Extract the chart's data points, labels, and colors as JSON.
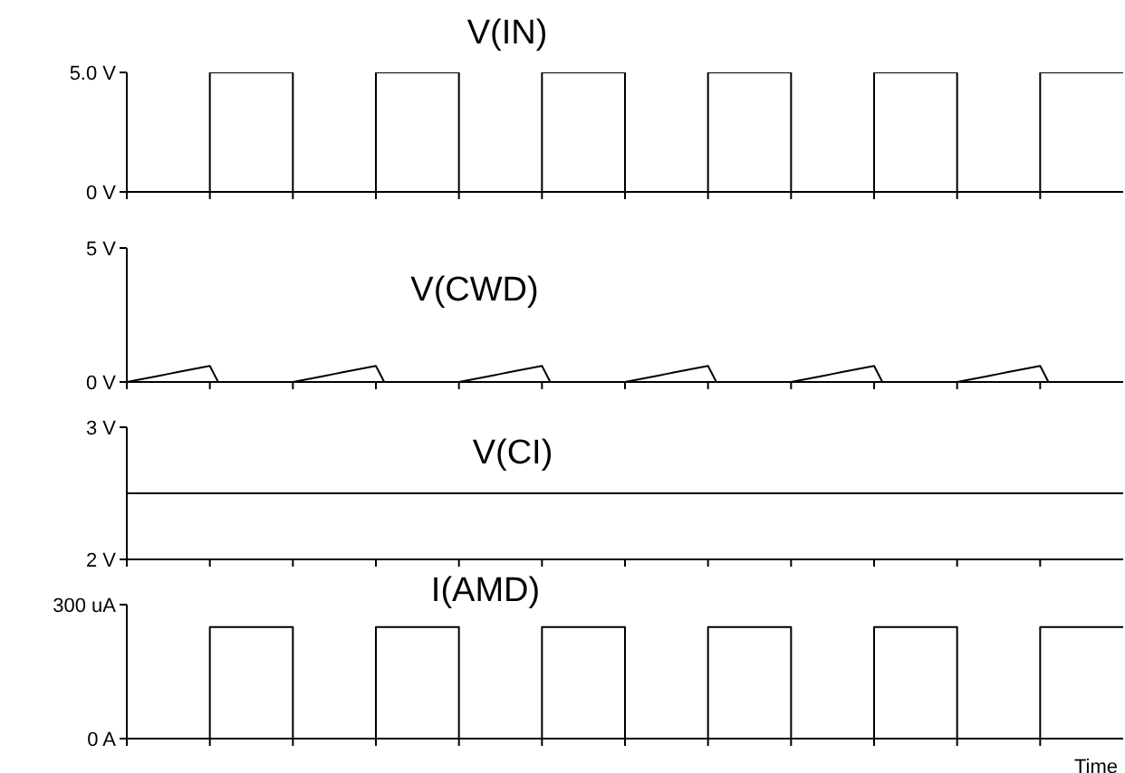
{
  "chart_data": [
    {
      "type": "step",
      "title": "V(IN)",
      "categories": [
        null,
        null,
        null,
        null,
        null,
        null,
        null,
        null,
        null,
        null,
        null,
        null,
        null
      ],
      "series": [
        {
          "color": "#000000",
          "values": [
            0,
            5,
            0,
            5,
            0,
            5,
            0,
            5,
            0,
            5,
            0,
            5,
            5
          ]
        }
      ],
      "ylim": [
        0,
        5
      ],
      "yticks": [
        {
          "value": 0,
          "label": "0 V"
        },
        {
          "value": 5,
          "label": "5.0 V"
        }
      ],
      "tick_labels": "y",
      "grid": false,
      "legend": false
    },
    {
      "type": "line",
      "title": "V(CWD)",
      "categories": [
        null,
        null,
        null,
        null,
        null,
        null,
        null,
        null,
        null,
        null,
        null,
        null,
        null,
        null,
        null,
        null,
        null,
        null,
        null,
        null,
        null,
        null,
        null,
        null,
        null,
        null,
        null,
        null,
        null,
        null,
        null,
        null,
        null,
        null,
        null,
        null,
        null,
        null,
        null,
        null,
        null,
        null,
        null,
        null,
        null,
        null,
        null,
        null,
        null,
        null,
        null,
        null,
        null,
        null,
        null,
        null,
        null,
        null,
        null,
        null,
        null,
        null,
        null,
        null,
        null,
        null,
        null,
        null,
        null,
        null,
        null,
        null,
        null,
        null,
        null,
        null,
        null,
        null,
        null,
        null,
        null,
        null,
        null,
        null,
        null,
        null,
        null,
        null,
        null,
        null,
        null,
        null,
        null,
        null,
        null,
        null,
        null,
        null,
        null,
        null,
        null,
        null,
        null,
        null,
        null,
        null,
        null,
        null,
        null,
        null,
        null,
        null,
        null,
        null,
        null,
        null,
        null,
        null,
        null,
        null,
        null
      ],
      "series": [
        {
          "color": "#000000",
          "values": [
            0,
            0.06,
            0.12,
            0.18,
            0.24,
            0.3,
            0.36,
            0.42,
            0.48,
            0.54,
            0.6,
            0,
            0,
            0,
            0,
            0,
            0,
            0,
            0,
            0,
            0,
            0.06,
            0.12,
            0.18,
            0.24,
            0.3,
            0.36,
            0.42,
            0.48,
            0.54,
            0.6,
            0,
            0,
            0,
            0,
            0,
            0,
            0,
            0,
            0,
            0,
            0.06,
            0.12,
            0.18,
            0.24,
            0.3,
            0.36,
            0.42,
            0.48,
            0.54,
            0.6,
            0,
            0,
            0,
            0,
            0,
            0,
            0,
            0,
            0,
            0,
            0.06,
            0.12,
            0.18,
            0.24,
            0.3,
            0.36,
            0.42,
            0.48,
            0.54,
            0.6,
            0,
            0,
            0,
            0,
            0,
            0,
            0,
            0,
            0,
            0,
            0.06,
            0.12,
            0.18,
            0.24,
            0.3,
            0.36,
            0.42,
            0.48,
            0.54,
            0.6,
            0,
            0,
            0,
            0,
            0,
            0,
            0,
            0,
            0,
            0,
            0.06,
            0.12,
            0.18,
            0.24,
            0.3,
            0.36,
            0.42,
            0.48,
            0.54,
            0.6,
            0,
            0,
            0,
            0,
            0,
            0,
            0,
            0,
            0,
            0
          ]
        }
      ],
      "ylim": [
        0,
        5
      ],
      "yticks": [
        {
          "value": 0,
          "label": "0 V"
        },
        {
          "value": 5,
          "label": "5 V"
        }
      ],
      "tick_labels": "y",
      "grid": false,
      "legend": false
    },
    {
      "type": "line",
      "title": "V(CI)",
      "categories": [
        null,
        null,
        null,
        null,
        null,
        null,
        null,
        null,
        null,
        null,
        null,
        null,
        null
      ],
      "series": [
        {
          "color": "#000000",
          "values": [
            2.5,
            2.5,
            2.5,
            2.5,
            2.5,
            2.5,
            2.5,
            2.5,
            2.5,
            2.5,
            2.5,
            2.5,
            2.5
          ]
        }
      ],
      "ylim": [
        2,
        3
      ],
      "yticks": [
        {
          "value": 2,
          "label": "2 V"
        },
        {
          "value": 3,
          "label": "3 V"
        }
      ],
      "tick_labels": "y",
      "grid": false,
      "legend": false
    },
    {
      "type": "step",
      "title": "I(AMD)",
      "xlabel": "Time",
      "categories": [
        null,
        null,
        null,
        null,
        null,
        null,
        null,
        null,
        null,
        null,
        null,
        null,
        null
      ],
      "series": [
        {
          "color": "#000000",
          "values": [
            0,
            250,
            0,
            250,
            0,
            250,
            0,
            250,
            0,
            250,
            0,
            250,
            250
          ]
        }
      ],
      "ylim": [
        0,
        300
      ],
      "yticks": [
        {
          "value": 0,
          "label": "0 A"
        },
        {
          "value": 300,
          "label": "300 uA"
        }
      ],
      "tick_labels": "y",
      "grid": false,
      "legend": false
    }
  ]
}
